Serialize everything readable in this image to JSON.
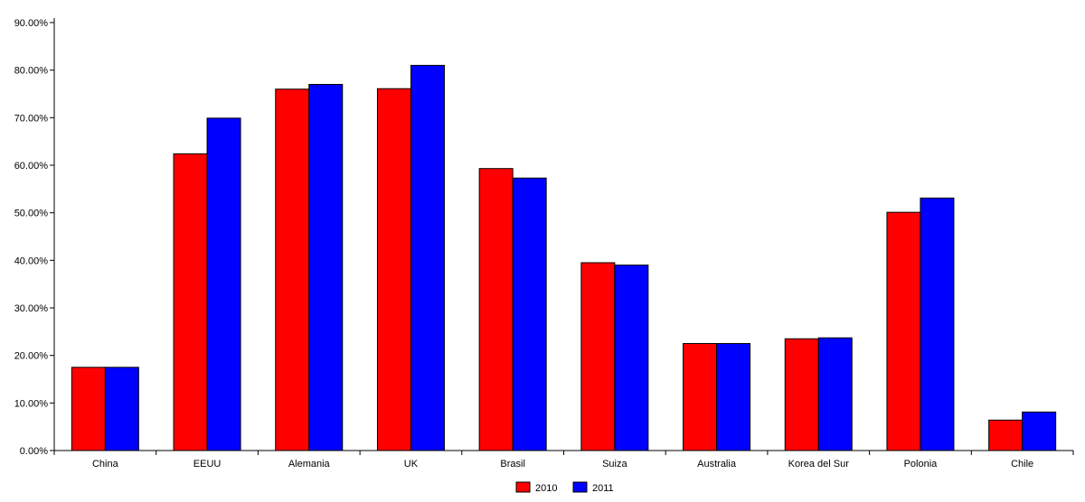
{
  "chart_data": {
    "type": "bar",
    "title": "",
    "xlabel": "",
    "ylabel": "",
    "categories": [
      "China",
      "EEUU",
      "Alemania",
      "UK",
      "Brasil",
      "Suiza",
      "Australia",
      "Korea del Sur",
      "Polonia",
      "Chile"
    ],
    "series": [
      {
        "name": "2010",
        "color": "#ff0000",
        "values": [
          17.5,
          62.4,
          76.0,
          76.1,
          59.3,
          39.5,
          22.5,
          23.5,
          50.1,
          6.4
        ]
      },
      {
        "name": "2011",
        "color": "#0000ff",
        "values": [
          17.5,
          69.9,
          77.0,
          81.0,
          57.3,
          39.0,
          22.5,
          23.7,
          53.1,
          8.1
        ]
      }
    ],
    "ylim": [
      0,
      90
    ],
    "yticks": [
      "0.00%",
      "10.00%",
      "20.00%",
      "30.00%",
      "40.00%",
      "50.00%",
      "60.00%",
      "70.00%",
      "80.00%",
      "90.00%"
    ],
    "grid": false,
    "legend_position": "bottom-center"
  }
}
